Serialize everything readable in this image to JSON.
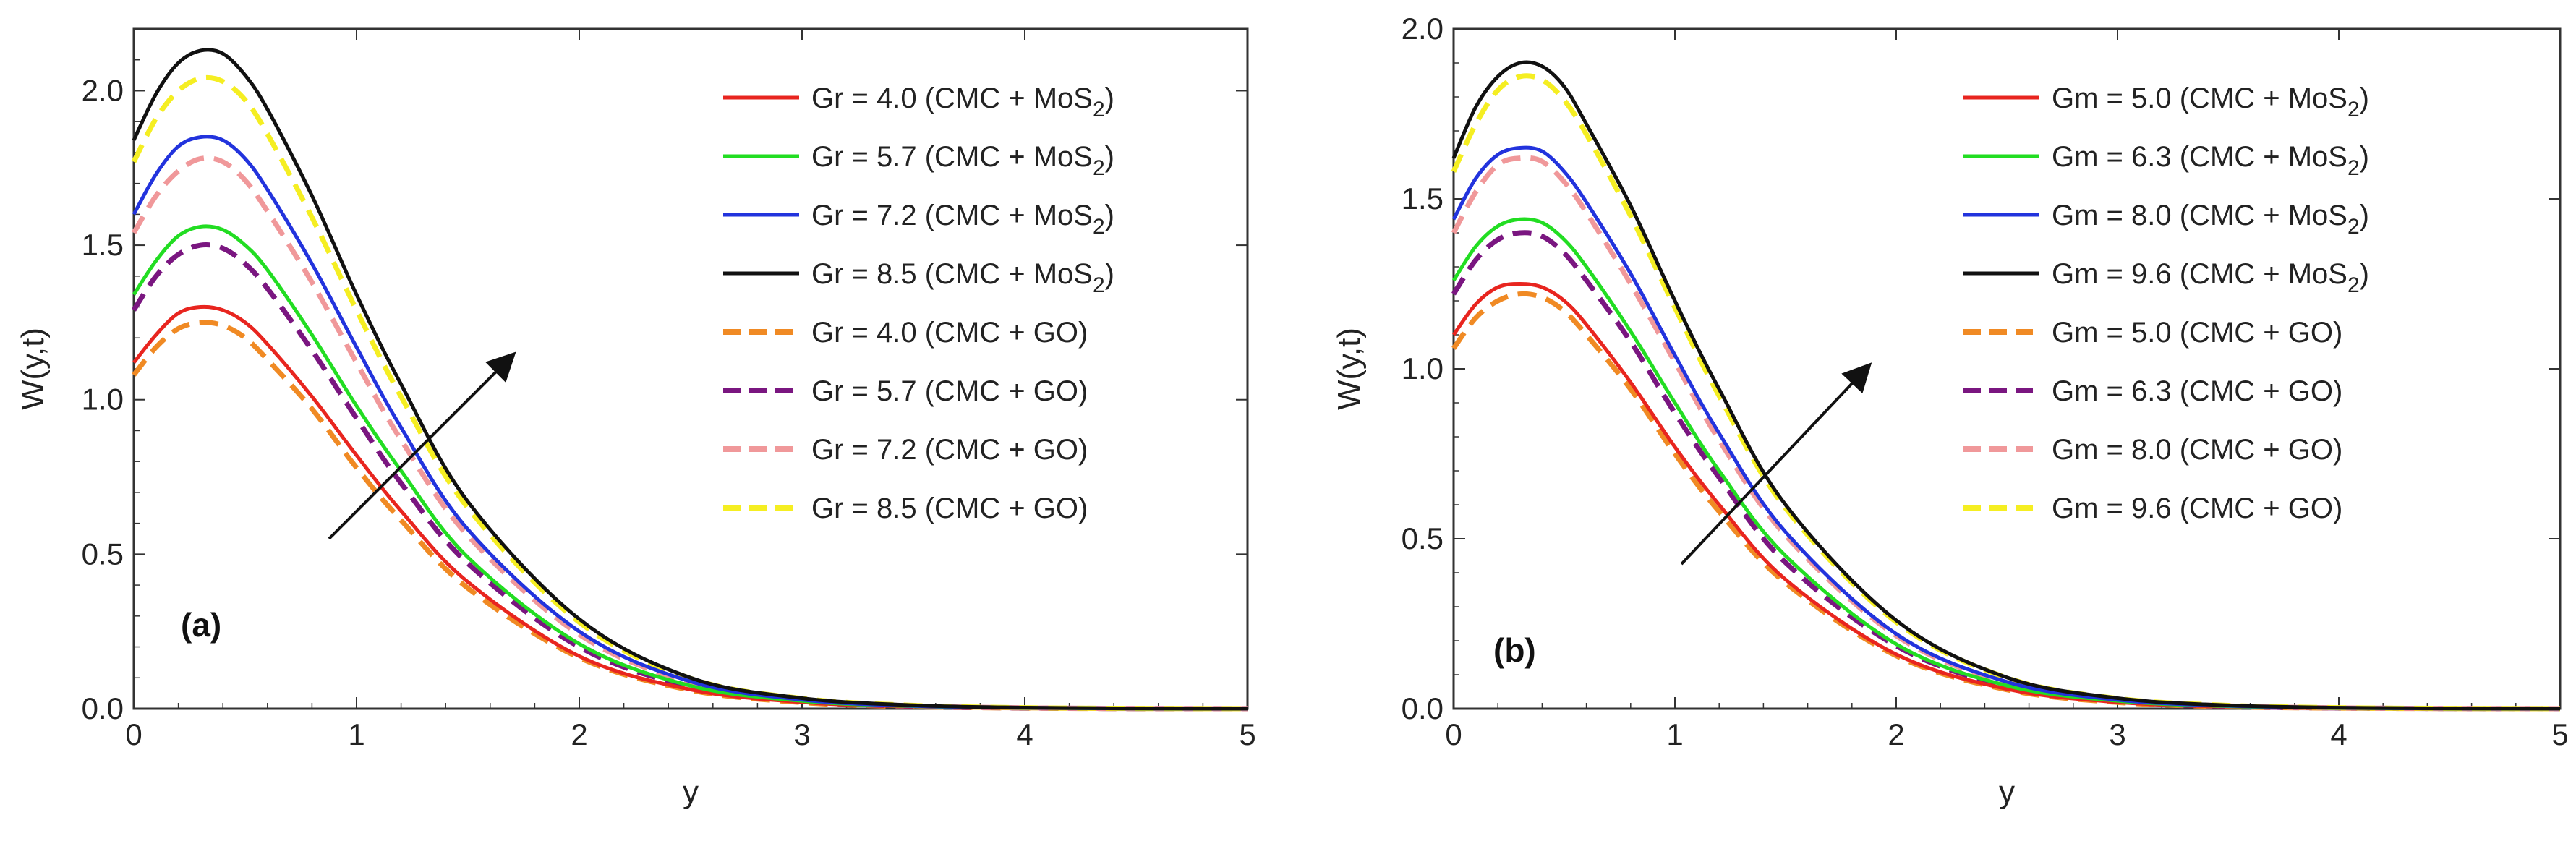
{
  "chart_data": [
    {
      "type": "line",
      "panel_label": "(a)",
      "xlabel": "y",
      "ylabel": "W(y,t)",
      "xlim": [
        0,
        5
      ],
      "ylim": [
        0,
        2.2
      ],
      "xticks": [
        "0",
        "1",
        "2",
        "3",
        "4",
        "5"
      ],
      "yticks": [
        "0.0",
        "0.5",
        "1.0",
        "1.5",
        "2.0"
      ],
      "grid": false,
      "legend_position": "top-right",
      "arrow": "increasing Gr",
      "x": [
        0,
        0.1,
        0.2,
        0.3,
        0.4,
        0.5,
        0.6,
        0.8,
        1.0,
        1.2,
        1.5,
        2.0,
        2.5,
        3.0,
        3.5,
        4.0,
        4.5,
        5.0
      ],
      "series": [
        {
          "name": "Gr = 4.0  (CMC + MoS",
          "name_sub": "2",
          "name_end": ")",
          "color": "#e8251f",
          "style": "solid",
          "values": [
            1.12,
            1.21,
            1.28,
            1.3,
            1.29,
            1.25,
            1.18,
            1.01,
            0.82,
            0.64,
            0.41,
            0.17,
            0.062,
            0.021,
            0.007,
            0.002,
            0.0005,
            0.0001
          ]
        },
        {
          "name": "Gr = 5.7  (CMC + MoS",
          "name_sub": "2",
          "name_end": ")",
          "color": "#22dd22",
          "style": "solid",
          "values": [
            1.34,
            1.45,
            1.53,
            1.56,
            1.55,
            1.5,
            1.42,
            1.21,
            0.98,
            0.77,
            0.49,
            0.21,
            0.074,
            0.025,
            0.008,
            0.0025,
            0.0007,
            0.0002
          ]
        },
        {
          "name": "Gr = 7.2  (CMC + MoS",
          "name_sub": "2",
          "name_end": ")",
          "color": "#2233dd",
          "style": "solid",
          "values": [
            1.6,
            1.73,
            1.82,
            1.85,
            1.84,
            1.78,
            1.68,
            1.44,
            1.17,
            0.91,
            0.58,
            0.25,
            0.088,
            0.029,
            0.009,
            0.003,
            0.0008,
            0.0002
          ]
        },
        {
          "name": "Gr = 8.5  (CMC + MoS",
          "name_sub": "2",
          "name_end": ")",
          "color": "#111111",
          "style": "solid",
          "values": [
            1.84,
            1.99,
            2.09,
            2.13,
            2.12,
            2.05,
            1.94,
            1.66,
            1.34,
            1.05,
            0.67,
            0.29,
            0.1,
            0.034,
            0.011,
            0.0035,
            0.0009,
            0.0002
          ]
        },
        {
          "name": "Gr = 4.0  (CMC + GO)",
          "color": "#f08a24",
          "style": "dashed",
          "values": [
            1.08,
            1.17,
            1.23,
            1.25,
            1.24,
            1.2,
            1.13,
            0.97,
            0.78,
            0.61,
            0.39,
            0.165,
            0.06,
            0.02,
            0.0065,
            0.002,
            0.0005,
            0.0001
          ]
        },
        {
          "name": "Gr = 5.7  (CMC + GO)",
          "color": "#7a1680",
          "style": "dashed",
          "values": [
            1.29,
            1.4,
            1.47,
            1.5,
            1.49,
            1.44,
            1.36,
            1.16,
            0.94,
            0.73,
            0.47,
            0.2,
            0.072,
            0.024,
            0.0078,
            0.0024,
            0.0007,
            0.0002
          ]
        },
        {
          "name": "Gr = 7.2  (CMC + GO)",
          "color": "#f0989a",
          "style": "dashed",
          "values": [
            1.54,
            1.66,
            1.74,
            1.78,
            1.77,
            1.71,
            1.61,
            1.38,
            1.12,
            0.87,
            0.56,
            0.24,
            0.085,
            0.028,
            0.009,
            0.0028,
            0.0008,
            0.0002
          ]
        },
        {
          "name": "Gr = 8.5  (CMC + GO)",
          "color": "#f5ee22",
          "style": "dashed",
          "values": [
            1.77,
            1.91,
            2.0,
            2.04,
            2.03,
            1.97,
            1.86,
            1.59,
            1.29,
            1.01,
            0.65,
            0.28,
            0.098,
            0.033,
            0.0105,
            0.0033,
            0.0009,
            0.0002
          ]
        }
      ]
    },
    {
      "type": "line",
      "panel_label": "(b)",
      "xlabel": "y",
      "ylabel": "W(y,t)",
      "xlim": [
        0,
        5
      ],
      "ylim": [
        0,
        2.0
      ],
      "xticks": [
        "0",
        "1",
        "2",
        "3",
        "4",
        "5"
      ],
      "yticks": [
        "0.0",
        "0.5",
        "1.0",
        "1.5",
        "2.0"
      ],
      "grid": false,
      "legend_position": "top-right",
      "arrow": "increasing Gm",
      "x": [
        0,
        0.1,
        0.2,
        0.3,
        0.4,
        0.5,
        0.6,
        0.8,
        1.0,
        1.2,
        1.5,
        2.0,
        2.5,
        3.0,
        3.5,
        4.0,
        4.5,
        5.0
      ],
      "series": [
        {
          "name": "Gm = 5.0  (CMC + MoS",
          "name_sub": "2",
          "name_end": ")",
          "color": "#e8251f",
          "style": "solid",
          "values": [
            1.1,
            1.19,
            1.24,
            1.25,
            1.24,
            1.2,
            1.13,
            0.96,
            0.77,
            0.6,
            0.38,
            0.16,
            0.058,
            0.019,
            0.006,
            0.0018,
            0.0005,
            0.0001
          ]
        },
        {
          "name": "Gm = 6.3  (CMC + MoS",
          "name_sub": "2",
          "name_end": ")",
          "color": "#22dd22",
          "style": "solid",
          "values": [
            1.26,
            1.36,
            1.42,
            1.44,
            1.43,
            1.38,
            1.3,
            1.11,
            0.9,
            0.7,
            0.45,
            0.19,
            0.068,
            0.023,
            0.0073,
            0.0022,
            0.0006,
            0.0002
          ]
        },
        {
          "name": "Gm = 8.0  (CMC + MoS",
          "name_sub": "2",
          "name_end": ")",
          "color": "#2233dd",
          "style": "solid",
          "values": [
            1.44,
            1.56,
            1.63,
            1.65,
            1.64,
            1.58,
            1.49,
            1.28,
            1.04,
            0.81,
            0.52,
            0.22,
            0.079,
            0.026,
            0.0085,
            0.0026,
            0.0007,
            0.0002
          ]
        },
        {
          "name": "Gm = 9.6  (CMC + MoS",
          "name_sub": "2",
          "name_end": ")",
          "color": "#111111",
          "style": "solid",
          "values": [
            1.62,
            1.77,
            1.86,
            1.9,
            1.89,
            1.83,
            1.72,
            1.48,
            1.2,
            0.94,
            0.6,
            0.26,
            0.092,
            0.031,
            0.0098,
            0.003,
            0.0008,
            0.0002
          ]
        },
        {
          "name": "Gm = 5.0  (CMC + GO)",
          "color": "#f08a24",
          "style": "dashed",
          "values": [
            1.06,
            1.15,
            1.2,
            1.22,
            1.21,
            1.17,
            1.1,
            0.94,
            0.75,
            0.58,
            0.37,
            0.156,
            0.056,
            0.0185,
            0.0058,
            0.0018,
            0.0005,
            0.0001
          ]
        },
        {
          "name": "Gm = 6.3  (CMC + GO)",
          "color": "#7a1680",
          "style": "dashed",
          "values": [
            1.22,
            1.32,
            1.38,
            1.4,
            1.39,
            1.34,
            1.26,
            1.08,
            0.87,
            0.68,
            0.43,
            0.185,
            0.066,
            0.022,
            0.007,
            0.0021,
            0.0006,
            0.0001
          ]
        },
        {
          "name": "Gm = 8.0  (CMC + GO)",
          "color": "#f0989a",
          "style": "dashed",
          "values": [
            1.4,
            1.52,
            1.6,
            1.62,
            1.61,
            1.55,
            1.46,
            1.25,
            1.02,
            0.79,
            0.51,
            0.215,
            0.077,
            0.0255,
            0.0082,
            0.0025,
            0.0007,
            0.0002
          ]
        },
        {
          "name": "Gm = 9.6  (CMC + GO)",
          "color": "#f5ee22",
          "style": "dashed",
          "values": [
            1.58,
            1.72,
            1.82,
            1.86,
            1.85,
            1.79,
            1.69,
            1.45,
            1.18,
            0.92,
            0.59,
            0.255,
            0.091,
            0.03,
            0.0096,
            0.003,
            0.0008,
            0.0002
          ]
        }
      ]
    }
  ]
}
